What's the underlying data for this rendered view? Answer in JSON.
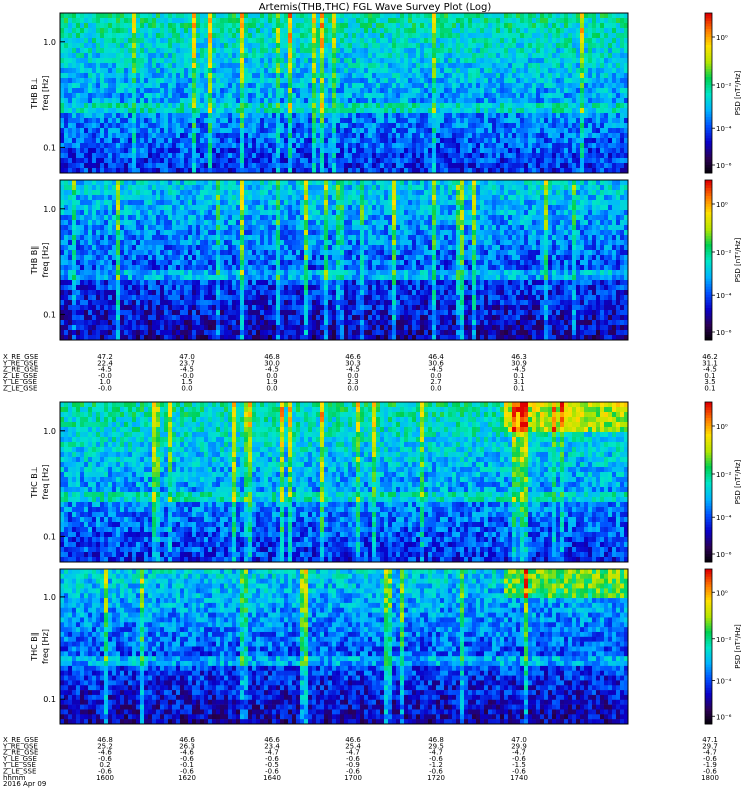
{
  "title": "Artemis(THB,THC) FGL Wave Survey Plot (Log)",
  "chart_data": [
    {
      "type": "heatmap",
      "panel_label": "THB B⊥",
      "ylabel": "freq [Hz]",
      "yscale": "log",
      "yticks": [
        "1.0",
        "0.1"
      ],
      "zlabel": "PSD [nT²/Hz]",
      "zticks": [
        "10⁰",
        "10⁻²",
        "10⁻⁴",
        "10⁻⁶"
      ],
      "colormap": [
        "#000000",
        "#2b0054",
        "#0a00c8",
        "#0050ff",
        "#00b4ff",
        "#00e6c8",
        "#00d050",
        "#b4e600",
        "#ffe000",
        "#ff7800",
        "#e00000"
      ]
    },
    {
      "type": "heatmap",
      "panel_label": "THB B∥",
      "ylabel": "freq [Hz]",
      "yscale": "log",
      "yticks": [
        "1.0",
        "0.1"
      ],
      "zlabel": "PSD [nT²/Hz]",
      "zticks": [
        "10⁰",
        "10⁻²",
        "10⁻⁴",
        "10⁻⁶"
      ]
    },
    {
      "type": "heatmap",
      "panel_label": "THC B⊥",
      "ylabel": "freq [Hz]",
      "yscale": "log",
      "yticks": [
        "1.0",
        "0.1"
      ],
      "zlabel": "PSD [nT²/Hz]",
      "zticks": [
        "10⁰",
        "10⁻²",
        "10⁻⁴",
        "10⁻⁶"
      ]
    },
    {
      "type": "heatmap",
      "panel_label": "THC B∥",
      "ylabel": "freq [Hz]",
      "yscale": "log",
      "yticks": [
        "1.0",
        "0.1"
      ],
      "zlabel": "PSD [nT²/Hz]",
      "zticks": [
        "10⁰",
        "10⁻²",
        "10⁻⁴",
        "10⁻⁶"
      ]
    }
  ],
  "thb_ephemeris": {
    "labels": [
      "X_RE_GSE",
      "Y_RE_GSE",
      "Z_RE_GSE",
      "Z_LE_GSE",
      "Y_LE_GSE",
      "Z_LE_GSE"
    ],
    "rows": [
      [
        "47.2",
        "47.0",
        "46.8",
        "46.6",
        "46.4",
        "46.3",
        "46.2"
      ],
      [
        "22.4",
        "23.7",
        "30.0",
        "30.3",
        "30.6",
        "30.9",
        "31.1"
      ],
      [
        "-4.5",
        "-4.5",
        "-4.5",
        "-4.5",
        "-4.5",
        "-4.5",
        "-4.5"
      ],
      [
        "-0.0",
        "-0.0",
        "0.0",
        "0.0",
        "0.0",
        "0.1",
        "0.1"
      ],
      [
        "1.0",
        "1.5",
        "1.9",
        "2.3",
        "2.7",
        "3.1",
        "3.5"
      ],
      [
        "-0.0",
        "0.0",
        "0.0",
        "0.0",
        "0.0",
        "0.1",
        "0.1"
      ]
    ]
  },
  "thc_ephemeris": {
    "labels": [
      "X_RE_GSE",
      "Y_RE_GSE",
      "Z_RE_GSE",
      "Y_LE_GSE",
      "Y_LE_SSE",
      "Z_LE_SSE",
      "hhmm"
    ],
    "rows": [
      [
        "46.8",
        "46.6",
        "46.6",
        "46.6",
        "46.8",
        "47.0",
        "47.1"
      ],
      [
        "25.2",
        "26.3",
        "23.4",
        "25.4",
        "29.5",
        "29.9",
        "29.7"
      ],
      [
        "-4.6",
        "-4.6",
        "-4.7",
        "-4.7",
        "-4.7",
        "-4.7",
        "-4.7"
      ],
      [
        "-0.6",
        "-0.6",
        "-0.6",
        "-0.6",
        "-0.6",
        "-0.6",
        "-0.6"
      ],
      [
        "0.2",
        "-0.1",
        "-0.5",
        "-0.9",
        "-1.2",
        "-1.5",
        "-1.9"
      ],
      [
        "-0.6",
        "-0.6",
        "-0.6",
        "-0.6",
        "-0.6",
        "-0.6",
        "-0.6"
      ],
      [
        "1600",
        "1620",
        "1640",
        "1700",
        "1720",
        "1740",
        "1800"
      ]
    ],
    "date": "2016 Apr 09"
  }
}
